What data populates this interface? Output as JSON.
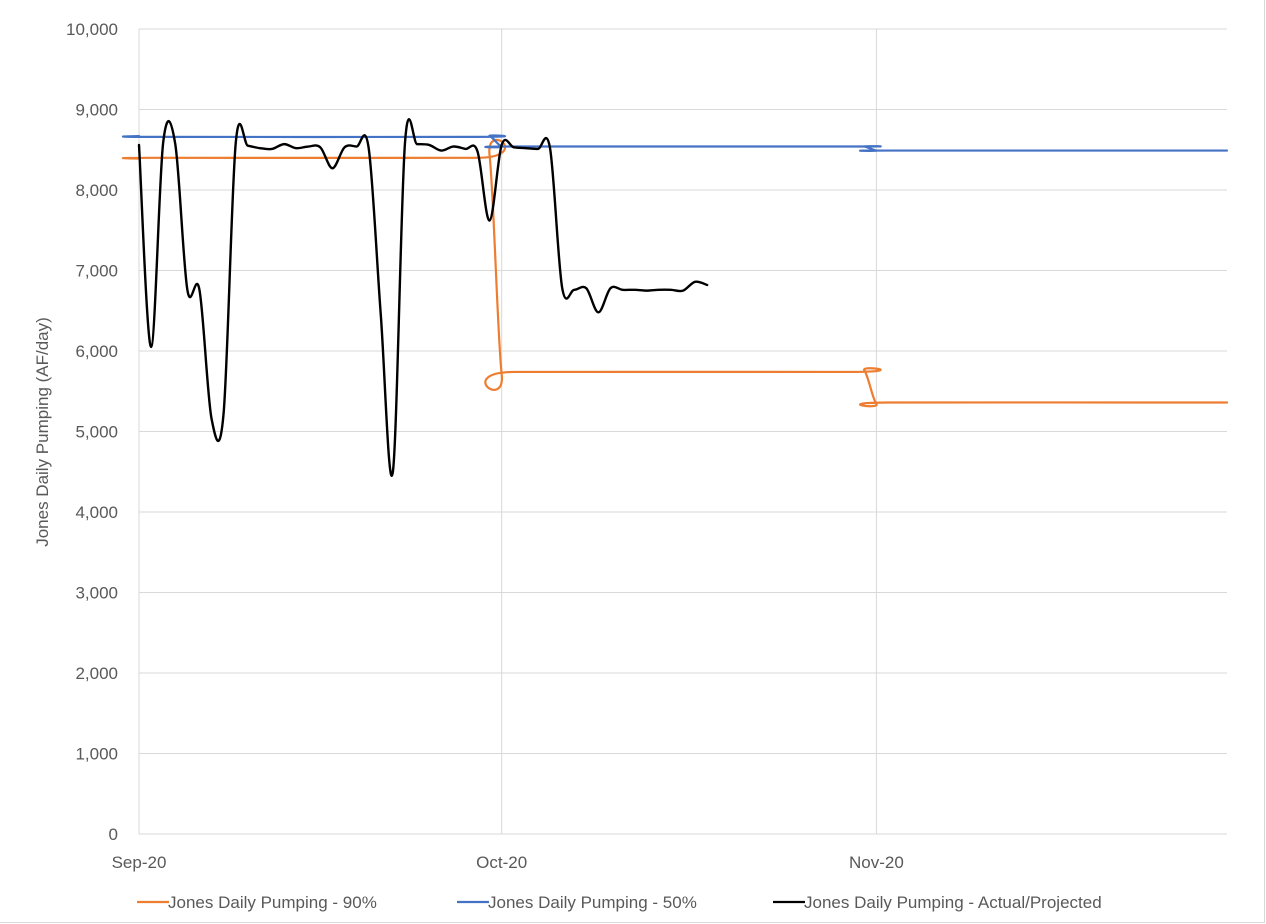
{
  "chart_data": {
    "type": "line",
    "title": "",
    "xlabel": "",
    "ylabel": "Jones Daily Pumping (AF/day)",
    "ylim": [
      0,
      10000
    ],
    "yticks": [
      0,
      1000,
      2000,
      3000,
      4000,
      5000,
      6000,
      7000,
      8000,
      9000,
      10000
    ],
    "ytick_labels": [
      "0",
      "1,000",
      "2,000",
      "3,000",
      "4,000",
      "5,000",
      "6,000",
      "7,000",
      "8,000",
      "9,000",
      "10,000"
    ],
    "xlim": [
      "2020-09-01",
      "2020-11-30"
    ],
    "xticks": [
      "2020-09-01",
      "2020-10-01",
      "2020-11-01"
    ],
    "xtick_labels": [
      "Sep-20",
      "Oct-20",
      "Nov-20"
    ],
    "grid": true,
    "legend_position": "bottom",
    "series": [
      {
        "name": "Jones Daily Pumping - 90%",
        "color": "#ED7D31",
        "points": [
          [
            "2020-09-01",
            8390
          ],
          [
            "2020-09-02",
            8400
          ],
          [
            "2020-09-29",
            8400
          ],
          [
            "2020-09-30",
            8430
          ],
          [
            "2020-10-01",
            5710
          ],
          [
            "2020-10-02",
            5740
          ],
          [
            "2020-10-30",
            5740
          ],
          [
            "2020-10-31",
            5760
          ],
          [
            "2020-11-01",
            5340
          ],
          [
            "2020-11-02",
            5360
          ],
          [
            "2020-11-30",
            5360
          ]
        ]
      },
      {
        "name": "Jones Daily Pumping - 50%",
        "color": "#4472C4",
        "points": [
          [
            "2020-09-01",
            8670
          ],
          [
            "2020-09-02",
            8660
          ],
          [
            "2020-09-29",
            8660
          ],
          [
            "2020-09-30",
            8670
          ],
          [
            "2020-10-01",
            8540
          ],
          [
            "2020-10-02",
            8540
          ],
          [
            "2020-10-30",
            8540
          ],
          [
            "2020-10-31",
            8540
          ],
          [
            "2020-11-01",
            8490
          ],
          [
            "2020-11-02",
            8490
          ],
          [
            "2020-11-30",
            8490
          ]
        ]
      },
      {
        "name": "Jones Daily Pumping - Actual/Projected",
        "color": "#000000",
        "points": [
          [
            "2020-09-01",
            8560
          ],
          [
            "2020-09-02",
            6050
          ],
          [
            "2020-09-03",
            8590
          ],
          [
            "2020-09-04",
            8570
          ],
          [
            "2020-09-05",
            6760
          ],
          [
            "2020-09-06",
            6760
          ],
          [
            "2020-09-07",
            5160
          ],
          [
            "2020-09-08",
            5230
          ],
          [
            "2020-09-09",
            8580
          ],
          [
            "2020-09-10",
            8550
          ],
          [
            "2020-09-11",
            8520
          ],
          [
            "2020-09-12",
            8510
          ],
          [
            "2020-09-13",
            8570
          ],
          [
            "2020-09-14",
            8520
          ],
          [
            "2020-09-15",
            8540
          ],
          [
            "2020-09-16",
            8530
          ],
          [
            "2020-09-17",
            8270
          ],
          [
            "2020-09-18",
            8530
          ],
          [
            "2020-09-19",
            8540
          ],
          [
            "2020-09-20",
            8520
          ],
          [
            "2020-09-21",
            6450
          ],
          [
            "2020-09-22",
            4500
          ],
          [
            "2020-09-23",
            8580
          ],
          [
            "2020-09-24",
            8570
          ],
          [
            "2020-09-25",
            8560
          ],
          [
            "2020-09-26",
            8490
          ],
          [
            "2020-09-27",
            8540
          ],
          [
            "2020-09-28",
            8510
          ],
          [
            "2020-09-29",
            8480
          ],
          [
            "2020-09-30",
            7620
          ],
          [
            "2020-10-01",
            8560
          ],
          [
            "2020-10-02",
            8530
          ],
          [
            "2020-10-03",
            8520
          ],
          [
            "2020-10-04",
            8510
          ],
          [
            "2020-10-05",
            8520
          ],
          [
            "2020-10-06",
            6790
          ],
          [
            "2020-10-07",
            6760
          ],
          [
            "2020-10-08",
            6780
          ],
          [
            "2020-10-09",
            6480
          ],
          [
            "2020-10-10",
            6780
          ],
          [
            "2020-10-11",
            6760
          ],
          [
            "2020-10-12",
            6760
          ],
          [
            "2020-10-13",
            6750
          ],
          [
            "2020-10-14",
            6760
          ],
          [
            "2020-10-15",
            6760
          ],
          [
            "2020-10-16",
            6750
          ],
          [
            "2020-10-17",
            6860
          ],
          [
            "2020-10-18",
            6820
          ]
        ]
      }
    ]
  }
}
